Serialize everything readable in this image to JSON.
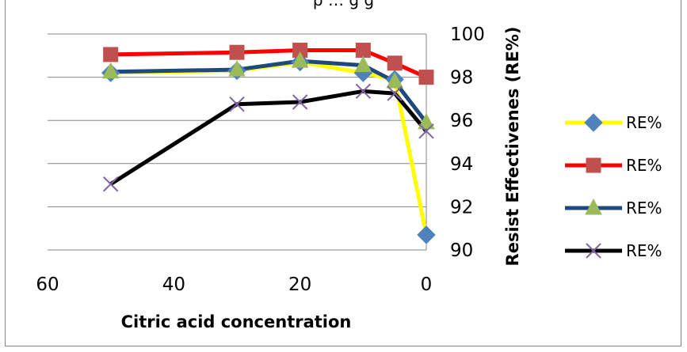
{
  "header_text": "p   …  g  g ",
  "chart_data": {
    "type": "line",
    "xlabel": "Citric acid concentration",
    "ylabel": "Resist Effectivenes (RE%)",
    "xlim": [
      60,
      0
    ],
    "ylim": [
      90,
      100
    ],
    "x_ticks": [
      "60",
      "40",
      "20",
      "0"
    ],
    "y_ticks": [
      "90",
      "92",
      "94",
      "96",
      "98",
      "100"
    ],
    "y_axis_side": "right",
    "x_reversed": true,
    "grid": "horizontal",
    "legend_position": "right",
    "series": [
      {
        "name": "RE%",
        "color": "#FFFF00",
        "marker": "diamond",
        "marker_color": "#4F81BD",
        "x": [
          50,
          30,
          20,
          10,
          5,
          0
        ],
        "y": [
          98.2,
          98.3,
          98.7,
          98.2,
          97.9,
          90.7
        ]
      },
      {
        "name": "RE%",
        "color": "#FF0000",
        "marker": "square",
        "marker_color": "#C0504D",
        "x": [
          50,
          30,
          20,
          10,
          5,
          0
        ],
        "y": [
          99.05,
          99.15,
          99.25,
          99.25,
          98.65,
          98.0
        ]
      },
      {
        "name": "RE%",
        "color": "#1F497D",
        "marker": "triangle",
        "marker_color": "#9BBB59",
        "x": [
          50,
          30,
          20,
          10,
          5,
          0
        ],
        "y": [
          98.25,
          98.35,
          98.75,
          98.55,
          97.8,
          95.9
        ]
      },
      {
        "name": "RE%",
        "color": "#000000",
        "marker": "x",
        "marker_color": "#8064A2",
        "x": [
          50,
          30,
          20,
          10,
          5,
          0
        ],
        "y": [
          93.05,
          96.75,
          96.85,
          97.35,
          97.25,
          95.5
        ]
      }
    ]
  }
}
